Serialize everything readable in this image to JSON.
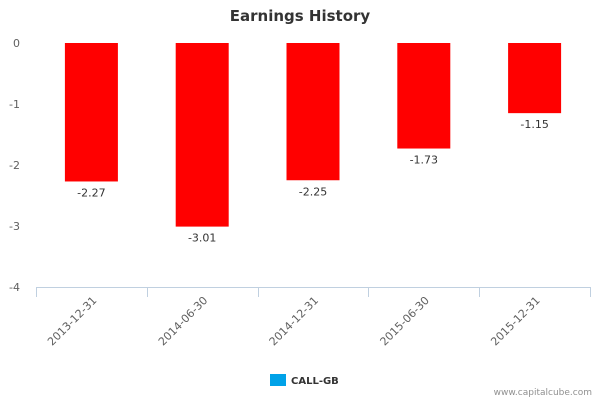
{
  "chart_data": {
    "type": "bar",
    "title": "Earnings History",
    "categories": [
      "2013-12-31",
      "2014-06-30",
      "2014-12-31",
      "2015-06-30",
      "2015-12-31"
    ],
    "series": [
      {
        "name": "CALL-GB",
        "values": [
          -2.27,
          -3.01,
          -2.25,
          -1.73,
          -1.15
        ],
        "bar_color": "#ff0000",
        "legend_color": "#00a2e8"
      }
    ],
    "data_labels": [
      "-2.27",
      "-3.01",
      "-2.25",
      "-1.73",
      "-1.15"
    ],
    "y_ticks": [
      0,
      -1,
      -2,
      -3,
      -4
    ],
    "y_tick_labels": [
      "0",
      "-1",
      "-2",
      "-3",
      "-4"
    ],
    "ylim": [
      -4,
      0
    ],
    "xlabel": "",
    "ylabel": "",
    "grid": false,
    "legend": "bottom-center"
  },
  "credit": "www.capitalcube.com",
  "colors": {
    "axis": "#c0d0e0",
    "text": "#333333",
    "tick_text": "#606060"
  }
}
